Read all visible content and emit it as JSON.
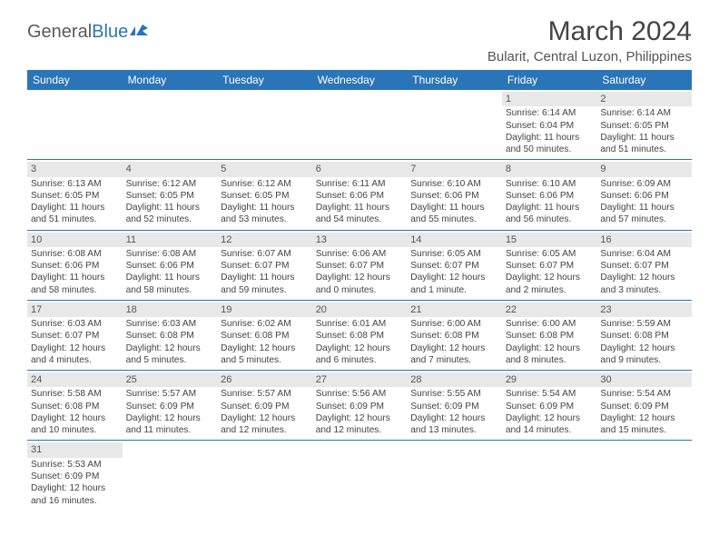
{
  "logo": {
    "general": "General",
    "blue": "Blue"
  },
  "title": "March 2024",
  "location": "Bularit, Central Luzon, Philippines",
  "header_bg": "#2a74b8",
  "days": [
    "Sunday",
    "Monday",
    "Tuesday",
    "Wednesday",
    "Thursday",
    "Friday",
    "Saturday"
  ],
  "weeks": [
    [
      null,
      null,
      null,
      null,
      null,
      {
        "n": "1",
        "sr": "Sunrise: 6:14 AM",
        "ss": "Sunset: 6:04 PM",
        "d1": "Daylight: 11 hours",
        "d2": "and 50 minutes."
      },
      {
        "n": "2",
        "sr": "Sunrise: 6:14 AM",
        "ss": "Sunset: 6:05 PM",
        "d1": "Daylight: 11 hours",
        "d2": "and 51 minutes."
      }
    ],
    [
      {
        "n": "3",
        "sr": "Sunrise: 6:13 AM",
        "ss": "Sunset: 6:05 PM",
        "d1": "Daylight: 11 hours",
        "d2": "and 51 minutes."
      },
      {
        "n": "4",
        "sr": "Sunrise: 6:12 AM",
        "ss": "Sunset: 6:05 PM",
        "d1": "Daylight: 11 hours",
        "d2": "and 52 minutes."
      },
      {
        "n": "5",
        "sr": "Sunrise: 6:12 AM",
        "ss": "Sunset: 6:05 PM",
        "d1": "Daylight: 11 hours",
        "d2": "and 53 minutes."
      },
      {
        "n": "6",
        "sr": "Sunrise: 6:11 AM",
        "ss": "Sunset: 6:06 PM",
        "d1": "Daylight: 11 hours",
        "d2": "and 54 minutes."
      },
      {
        "n": "7",
        "sr": "Sunrise: 6:10 AM",
        "ss": "Sunset: 6:06 PM",
        "d1": "Daylight: 11 hours",
        "d2": "and 55 minutes."
      },
      {
        "n": "8",
        "sr": "Sunrise: 6:10 AM",
        "ss": "Sunset: 6:06 PM",
        "d1": "Daylight: 11 hours",
        "d2": "and 56 minutes."
      },
      {
        "n": "9",
        "sr": "Sunrise: 6:09 AM",
        "ss": "Sunset: 6:06 PM",
        "d1": "Daylight: 11 hours",
        "d2": "and 57 minutes."
      }
    ],
    [
      {
        "n": "10",
        "sr": "Sunrise: 6:08 AM",
        "ss": "Sunset: 6:06 PM",
        "d1": "Daylight: 11 hours",
        "d2": "and 58 minutes."
      },
      {
        "n": "11",
        "sr": "Sunrise: 6:08 AM",
        "ss": "Sunset: 6:06 PM",
        "d1": "Daylight: 11 hours",
        "d2": "and 58 minutes."
      },
      {
        "n": "12",
        "sr": "Sunrise: 6:07 AM",
        "ss": "Sunset: 6:07 PM",
        "d1": "Daylight: 11 hours",
        "d2": "and 59 minutes."
      },
      {
        "n": "13",
        "sr": "Sunrise: 6:06 AM",
        "ss": "Sunset: 6:07 PM",
        "d1": "Daylight: 12 hours",
        "d2": "and 0 minutes."
      },
      {
        "n": "14",
        "sr": "Sunrise: 6:05 AM",
        "ss": "Sunset: 6:07 PM",
        "d1": "Daylight: 12 hours",
        "d2": "and 1 minute."
      },
      {
        "n": "15",
        "sr": "Sunrise: 6:05 AM",
        "ss": "Sunset: 6:07 PM",
        "d1": "Daylight: 12 hours",
        "d2": "and 2 minutes."
      },
      {
        "n": "16",
        "sr": "Sunrise: 6:04 AM",
        "ss": "Sunset: 6:07 PM",
        "d1": "Daylight: 12 hours",
        "d2": "and 3 minutes."
      }
    ],
    [
      {
        "n": "17",
        "sr": "Sunrise: 6:03 AM",
        "ss": "Sunset: 6:07 PM",
        "d1": "Daylight: 12 hours",
        "d2": "and 4 minutes."
      },
      {
        "n": "18",
        "sr": "Sunrise: 6:03 AM",
        "ss": "Sunset: 6:08 PM",
        "d1": "Daylight: 12 hours",
        "d2": "and 5 minutes."
      },
      {
        "n": "19",
        "sr": "Sunrise: 6:02 AM",
        "ss": "Sunset: 6:08 PM",
        "d1": "Daylight: 12 hours",
        "d2": "and 5 minutes."
      },
      {
        "n": "20",
        "sr": "Sunrise: 6:01 AM",
        "ss": "Sunset: 6:08 PM",
        "d1": "Daylight: 12 hours",
        "d2": "and 6 minutes."
      },
      {
        "n": "21",
        "sr": "Sunrise: 6:00 AM",
        "ss": "Sunset: 6:08 PM",
        "d1": "Daylight: 12 hours",
        "d2": "and 7 minutes."
      },
      {
        "n": "22",
        "sr": "Sunrise: 6:00 AM",
        "ss": "Sunset: 6:08 PM",
        "d1": "Daylight: 12 hours",
        "d2": "and 8 minutes."
      },
      {
        "n": "23",
        "sr": "Sunrise: 5:59 AM",
        "ss": "Sunset: 6:08 PM",
        "d1": "Daylight: 12 hours",
        "d2": "and 9 minutes."
      }
    ],
    [
      {
        "n": "24",
        "sr": "Sunrise: 5:58 AM",
        "ss": "Sunset: 6:08 PM",
        "d1": "Daylight: 12 hours",
        "d2": "and 10 minutes."
      },
      {
        "n": "25",
        "sr": "Sunrise: 5:57 AM",
        "ss": "Sunset: 6:09 PM",
        "d1": "Daylight: 12 hours",
        "d2": "and 11 minutes."
      },
      {
        "n": "26",
        "sr": "Sunrise: 5:57 AM",
        "ss": "Sunset: 6:09 PM",
        "d1": "Daylight: 12 hours",
        "d2": "and 12 minutes."
      },
      {
        "n": "27",
        "sr": "Sunrise: 5:56 AM",
        "ss": "Sunset: 6:09 PM",
        "d1": "Daylight: 12 hours",
        "d2": "and 12 minutes."
      },
      {
        "n": "28",
        "sr": "Sunrise: 5:55 AM",
        "ss": "Sunset: 6:09 PM",
        "d1": "Daylight: 12 hours",
        "d2": "and 13 minutes."
      },
      {
        "n": "29",
        "sr": "Sunrise: 5:54 AM",
        "ss": "Sunset: 6:09 PM",
        "d1": "Daylight: 12 hours",
        "d2": "and 14 minutes."
      },
      {
        "n": "30",
        "sr": "Sunrise: 5:54 AM",
        "ss": "Sunset: 6:09 PM",
        "d1": "Daylight: 12 hours",
        "d2": "and 15 minutes."
      }
    ],
    [
      {
        "n": "31",
        "sr": "Sunrise: 5:53 AM",
        "ss": "Sunset: 6:09 PM",
        "d1": "Daylight: 12 hours",
        "d2": "and 16 minutes."
      },
      null,
      null,
      null,
      null,
      null,
      null
    ]
  ]
}
